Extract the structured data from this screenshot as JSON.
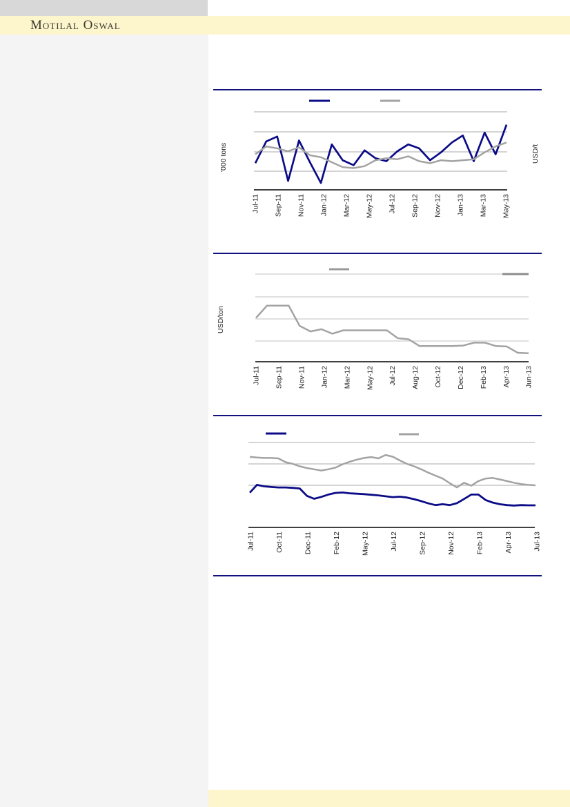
{
  "page": {
    "brand": "Motilal Oswal",
    "colors": {
      "accent_navy": "#10107e",
      "header_yellow": "#fdf5cc",
      "topbar_gray": "#d8d8d8",
      "sidebar_gray": "#f4f4f5",
      "series_navy": "#0b0b87",
      "series_gray": "#a3a3a3"
    }
  },
  "charts": [
    {
      "type": "line",
      "title": "",
      "ylabel_left": "'000 tons",
      "ylabel_right": "USD/t",
      "y_axis": {
        "tick_labels_visible": false,
        "values_in": "gridline units (no numeric labels shown)"
      },
      "grid_color": "#a8a8a8",
      "x_labels": [
        "Jul-11",
        "Sep-11",
        "Nov-11",
        "Jan-12",
        "Mar-12",
        "May-12",
        "Jul-12",
        "Sep-12",
        "Nov-12",
        "Jan-13",
        "Mar-13",
        "May-13"
      ],
      "legend": [
        {
          "label": "",
          "color": "#0b0b87"
        },
        {
          "label": "",
          "color": "#a3a3a3"
        }
      ],
      "series": [
        {
          "name": "navy-series",
          "color": "#0b0b87",
          "width": 2.7,
          "values": [
            1.35,
            2.45,
            2.7,
            0.45,
            2.5,
            1.4,
            0.35,
            2.3,
            1.5,
            1.25,
            2.0,
            1.6,
            1.45,
            1.95,
            2.3,
            2.1,
            1.5,
            1.9,
            2.4,
            2.75,
            1.45,
            2.9,
            1.8,
            3.3
          ]
        },
        {
          "name": "gray-series",
          "color": "#a3a3a3",
          "width": 2.5,
          "values": [
            1.8,
            2.2,
            2.1,
            1.95,
            2.15,
            1.75,
            1.65,
            1.4,
            1.15,
            1.1,
            1.2,
            1.5,
            1.6,
            1.55,
            1.7,
            1.45,
            1.35,
            1.5,
            1.45,
            1.5,
            1.55,
            1.9,
            2.2,
            2.4
          ]
        }
      ]
    },
    {
      "type": "line",
      "title": "",
      "ylabel_left": "USD/ton",
      "ylabel_right": "",
      "y_axis": {
        "tick_labels_visible": false,
        "values_in": "gridline units (no numeric labels shown)"
      },
      "grid_color": "#c2c2c2",
      "x_labels": [
        "Jul-11",
        "Sep-11",
        "Nov-11",
        "Jan-12",
        "Mar-12",
        "May-12",
        "Jul-12",
        "Aug-12",
        "Oct-12",
        "Dec-12",
        "Feb-13",
        "Apr-13",
        "Jun-13"
      ],
      "legend": [
        {
          "label": "",
          "color": "#9a9a9a"
        },
        {
          "label": "",
          "color": "#8c8c8c"
        }
      ],
      "series": [
        {
          "name": "gray-step-series",
          "color": "#a3a3a3",
          "width": 2.5,
          "values": [
            1.95,
            2.5,
            2.5,
            2.5,
            1.6,
            1.35,
            1.45,
            1.25,
            1.4,
            1.4,
            1.4,
            1.4,
            1.4,
            1.05,
            1.0,
            0.7,
            0.7,
            0.7,
            0.7,
            0.72,
            0.85,
            0.85,
            0.7,
            0.68,
            0.4,
            0.38
          ]
        }
      ]
    },
    {
      "type": "line",
      "title": "",
      "ylabel_left": "",
      "ylabel_right": "",
      "y_axis": {
        "tick_labels_visible": false,
        "values_in": "gridline units (no numeric labels shown)"
      },
      "grid_color": "#a8a8a8",
      "x_labels": [
        "Jul-11",
        "Oct-11",
        "Dec-11",
        "Feb-12",
        "May-12",
        "Jul-12",
        "Sep-12",
        "Nov-12",
        "Feb-13",
        "Apr-13",
        "Jul-13"
      ],
      "legend": [
        {
          "label": "",
          "color": "#0b0b87"
        },
        {
          "label": "",
          "color": "#a3a3a3"
        }
      ],
      "series": [
        {
          "name": "navy-series",
          "color": "#0b0b87",
          "width": 2.8,
          "values": [
            1.65,
            2.02,
            1.95,
            1.92,
            1.9,
            1.9,
            1.88,
            1.85,
            1.5,
            1.36,
            1.45,
            1.56,
            1.64,
            1.66,
            1.62,
            1.6,
            1.58,
            1.55,
            1.52,
            1.48,
            1.44,
            1.46,
            1.42,
            1.34,
            1.25,
            1.14,
            1.06,
            1.1,
            1.06,
            1.15,
            1.35,
            1.56,
            1.56,
            1.3,
            1.18,
            1.1,
            1.06,
            1.04,
            1.06,
            1.05,
            1.05
          ]
        },
        {
          "name": "gray-series",
          "color": "#a3a3a3",
          "width": 2.5,
          "values": [
            3.35,
            3.32,
            3.3,
            3.3,
            3.28,
            3.1,
            3.02,
            2.9,
            2.82,
            2.76,
            2.7,
            2.76,
            2.84,
            3.0,
            3.12,
            3.22,
            3.3,
            3.34,
            3.28,
            3.44,
            3.36,
            3.18,
            3.02,
            2.9,
            2.76,
            2.6,
            2.46,
            2.32,
            2.1,
            1.9,
            2.12,
            1.98,
            2.2,
            2.32,
            2.35,
            2.28,
            2.2,
            2.12,
            2.06,
            2.02,
            2.0
          ]
        }
      ]
    }
  ]
}
